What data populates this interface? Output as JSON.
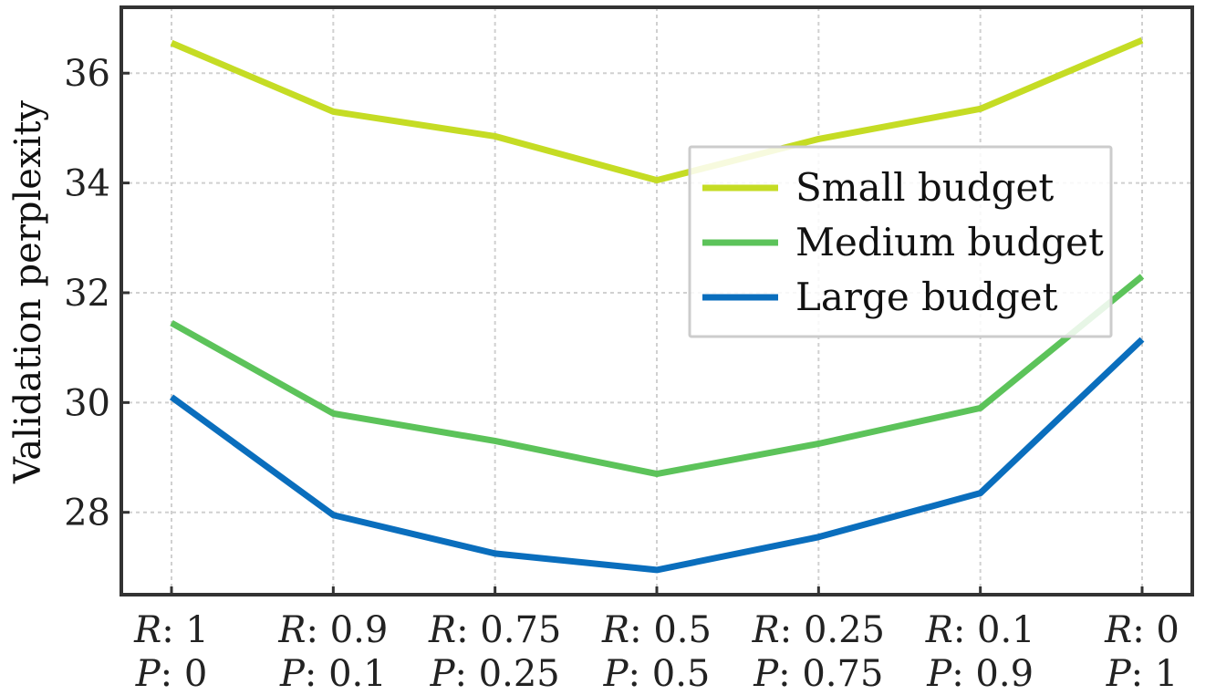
{
  "chart_data": {
    "type": "line",
    "ylabel": "Validation perplexity",
    "xlabel": "",
    "categories": [
      {
        "r": "1",
        "p": "0"
      },
      {
        "r": "0.9",
        "p": "0.1"
      },
      {
        "r": "0.75",
        "p": "0.25"
      },
      {
        "r": "0.5",
        "p": "0.5"
      },
      {
        "r": "0.25",
        "p": "0.75"
      },
      {
        "r": "0.1",
        "p": "0.9"
      },
      {
        "r": "0",
        "p": "1"
      }
    ],
    "category_prefix": {
      "r": "R",
      "p": "P"
    },
    "ylim": [
      26.5,
      37.2
    ],
    "yticks": [
      28,
      30,
      32,
      34,
      36
    ],
    "grid": true,
    "legend_position": "center-right",
    "series": [
      {
        "name": "Small budget",
        "color": "#c5dc24",
        "values": [
          36.55,
          35.3,
          34.85,
          34.05,
          34.8,
          35.35,
          36.6
        ]
      },
      {
        "name": "Medium budget",
        "color": "#5cc35a",
        "values": [
          31.45,
          29.8,
          29.3,
          28.7,
          29.25,
          29.9,
          32.3
        ]
      },
      {
        "name": "Large budget",
        "color": "#0a6ebd",
        "values": [
          30.1,
          27.95,
          27.25,
          26.95,
          27.55,
          28.35,
          31.15
        ]
      }
    ]
  }
}
